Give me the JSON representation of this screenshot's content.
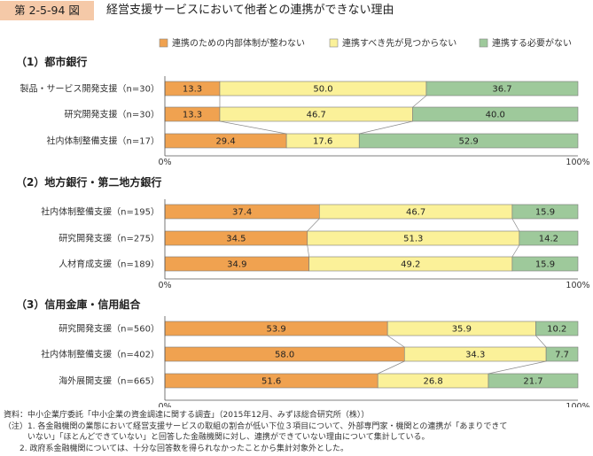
{
  "figure": {
    "number": "第 2-5-94 図",
    "title": "経営支援サービスにおいて他者との連携ができない理由"
  },
  "colors": {
    "series": [
      "#f0a250",
      "#fbf199",
      "#9ec99b"
    ],
    "tag_bg": "#f5c9a8"
  },
  "chart_data": {
    "type": "bar",
    "orientation": "horizontal",
    "stacked": true,
    "percent": true,
    "xlim": [
      0,
      100
    ],
    "series_names": [
      "連携のための内部体制が整わない",
      "連携すべき先が見つからない",
      "連携する必要がない"
    ],
    "legend_position": "top-right",
    "axis_labels": [
      "0%",
      "100%"
    ],
    "panels": [
      {
        "title": "（1）都市銀行",
        "categories": [
          "製品・サービス開発支援（n=30）",
          "研究開発支援（n=30）",
          "社内体制整備支援（n=17）"
        ],
        "values": [
          [
            13.3,
            50.0,
            36.7
          ],
          [
            13.3,
            46.7,
            40.0
          ],
          [
            29.4,
            17.6,
            52.9
          ]
        ],
        "labels": [
          [
            "13.3",
            "50.0",
            "36.7"
          ],
          [
            "13.3",
            "46.7",
            "40.0"
          ],
          [
            "29.4",
            "17.6",
            "52.9"
          ]
        ]
      },
      {
        "title": "（2）地方銀行・第二地方銀行",
        "categories": [
          "社内体制整備支援（n=195）",
          "研究開発支援（n=275）",
          "人材育成支援（n=189）"
        ],
        "values": [
          [
            37.4,
            46.7,
            15.9
          ],
          [
            34.5,
            51.3,
            14.2
          ],
          [
            34.9,
            49.2,
            15.9
          ]
        ],
        "labels": [
          [
            "37.4",
            "46.7",
            "15.9"
          ],
          [
            "34.5",
            "51.3",
            "14.2"
          ],
          [
            "34.9",
            "49.2",
            "15.9"
          ]
        ]
      },
      {
        "title": "（3）信用金庫・信用組合",
        "categories": [
          "研究開発支援（n=560）",
          "社内体制整備支援（n=402）",
          "海外展開支援（n=665）"
        ],
        "values": [
          [
            53.9,
            35.9,
            10.2
          ],
          [
            58.0,
            34.3,
            7.7
          ],
          [
            51.6,
            26.8,
            21.7
          ]
        ],
        "labels": [
          [
            "53.9",
            "35.9",
            "10.2"
          ],
          [
            "58.0",
            "34.3",
            "7.7"
          ],
          [
            "51.6",
            "26.8",
            "21.7"
          ]
        ]
      }
    ]
  },
  "notes": [
    "資料：中小企業庁委託「中小企業の資金調達に関する調査」（2015年12月、みずほ総合研究所（株））",
    "（注）1. 各金融機関の業態において経営支援サービスの取組の割合が低い下位３項目について、外部専門家・機関との連携が「あまりできて",
    "　　　いない」「ほとんどできていない」と回答した金融機関に対し、連携ができていない理由について集計している。",
    "　　2. 政府系金融機関については、十分な回答数を得られなかったことから集計対象外とした。"
  ]
}
